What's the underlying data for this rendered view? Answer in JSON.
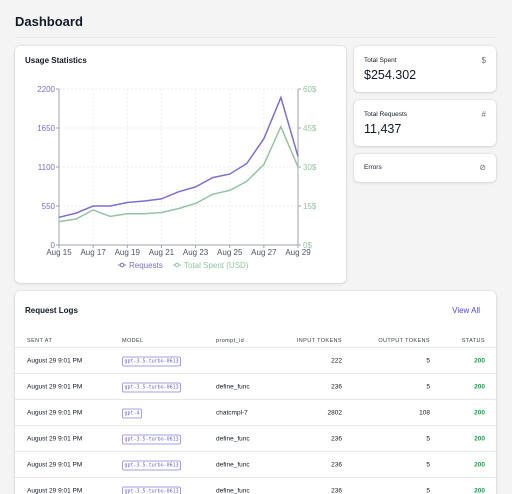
{
  "page": {
    "title": "Dashboard"
  },
  "usage": {
    "title": "Usage Statistics",
    "chart_data": {
      "type": "line",
      "title": "",
      "x": [
        "Aug 15",
        "Aug 16",
        "Aug 17",
        "Aug 18",
        "Aug 19",
        "Aug 20",
        "Aug 21",
        "Aug 22",
        "Aug 23",
        "Aug 24",
        "Aug 25",
        "Aug 26",
        "Aug 27",
        "Aug 28",
        "Aug 29"
      ],
      "x_tick_labels": [
        "Aug 15",
        "Aug 17",
        "Aug 19",
        "Aug 21",
        "Aug 23",
        "Aug 25",
        "Aug 27",
        "Aug 29"
      ],
      "y_left_ticks": [
        "0",
        "550",
        "1100",
        "1650",
        "2200"
      ],
      "y_right_ticks": [
        "0$",
        "15$",
        "30$",
        "45$",
        "60$"
      ],
      "ylim_left": [
        0,
        2200
      ],
      "ylim_right": [
        0,
        60
      ],
      "series": [
        {
          "name": "Requests",
          "axis": "left",
          "color": "#7c6fcf",
          "values": [
            390,
            450,
            550,
            550,
            600,
            620,
            650,
            750,
            820,
            950,
            1000,
            1150,
            1500,
            2080,
            1250
          ]
        },
        {
          "name": "Total Spent (USD)",
          "axis": "right",
          "color": "#94c4a4",
          "values": [
            9,
            10,
            13.5,
            11,
            12,
            12,
            12.5,
            14,
            16,
            19.5,
            21,
            24.5,
            31,
            45.5,
            30
          ]
        }
      ],
      "grid": true,
      "legend": "bottom"
    }
  },
  "stats": {
    "spent": {
      "label": "Total Spent",
      "value": "$254.302",
      "icon": "dollar-icon",
      "glyph": "$"
    },
    "requests": {
      "label": "Total Requests",
      "value": "11,437",
      "icon": "hash-icon",
      "glyph": "#"
    },
    "errors": {
      "label": "Errors",
      "icon": "ban-icon",
      "glyph": "⊘"
    }
  },
  "logs": {
    "title": "Request Logs",
    "view_all": "View All",
    "columns": {
      "sent_at": "SENT AT",
      "model": "MODEL",
      "prompt_id": "prompt_id",
      "input_tokens": "INPUT TOKENS",
      "output_tokens": "OUTPUT TOKENS",
      "status": "STATUS"
    },
    "rows": [
      {
        "sent_at": "August 29 9:01 PM",
        "model": "gpt-3.5-turbo-0613",
        "prompt_id": "",
        "input_tokens": "222",
        "output_tokens": "5",
        "status": "200"
      },
      {
        "sent_at": "August 29 9:01 PM",
        "model": "gpt-3.5-turbo-0613",
        "prompt_id": "define_func",
        "input_tokens": "236",
        "output_tokens": "5",
        "status": "200"
      },
      {
        "sent_at": "August 29 9:01 PM",
        "model": "gpt-4",
        "prompt_id": "chatcmpl-7",
        "input_tokens": "2802",
        "output_tokens": "108",
        "status": "200"
      },
      {
        "sent_at": "August 29 9:01 PM",
        "model": "gpt-3.5-turbo-0613",
        "prompt_id": "define_func",
        "input_tokens": "236",
        "output_tokens": "5",
        "status": "200"
      },
      {
        "sent_at": "August 29 9:01 PM",
        "model": "gpt-3.5-turbo-0613",
        "prompt_id": "define_func",
        "input_tokens": "236",
        "output_tokens": "5",
        "status": "200"
      },
      {
        "sent_at": "August 29 9:01 PM",
        "model": "gpt-3.5-turbo-0613",
        "prompt_id": "define_func",
        "input_tokens": "236",
        "output_tokens": "5",
        "status": "200"
      }
    ]
  }
}
